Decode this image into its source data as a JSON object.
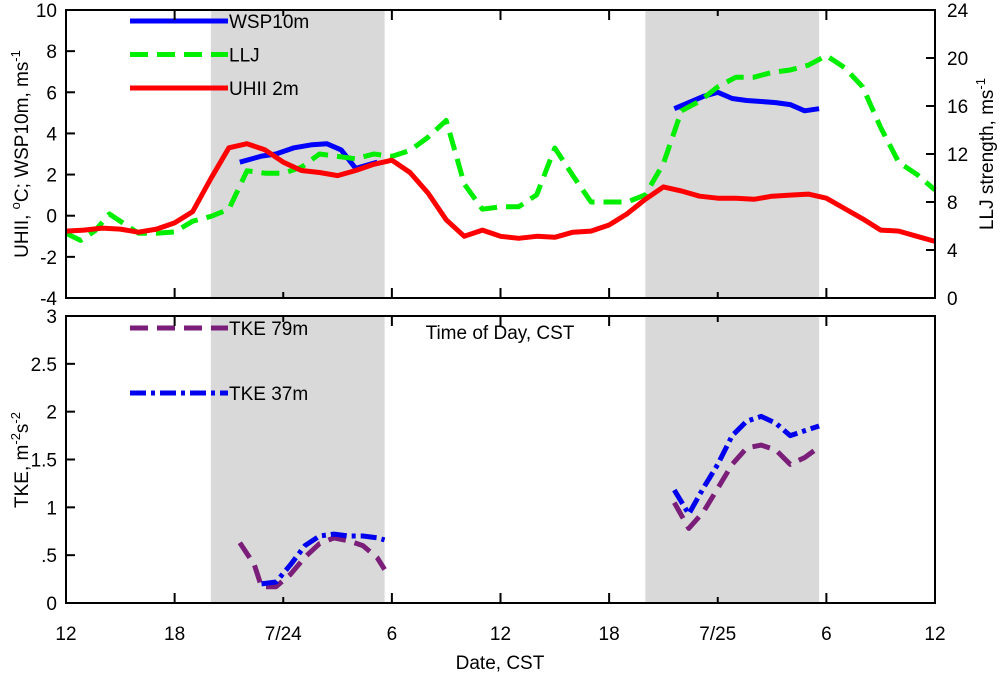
{
  "chart_data": [
    {
      "type": "line",
      "panel": "top",
      "ylabel": "UHII, °C; WSP10m, ms-1",
      "ylabel_parts": [
        "UHII, ",
        "o",
        "C; WSP10m, ms",
        "-1"
      ],
      "y2label": "LLJ strength, ms-1",
      "y2label_parts": [
        "LLJ strength, ms",
        "-1"
      ],
      "xlim": [
        0,
        48
      ],
      "ylim": [
        -4,
        10
      ],
      "y2lim": [
        0,
        24
      ],
      "yticks": [
        -4,
        -2,
        0,
        2,
        4,
        6,
        8,
        10
      ],
      "ytick_labels": [
        "-4",
        "-2",
        "0",
        "2",
        "4",
        "6",
        "8",
        "10"
      ],
      "y2ticks": [
        0,
        4,
        8,
        12,
        16,
        20,
        24
      ],
      "y2tick_labels": [
        "0",
        "4",
        "8",
        "12",
        "16",
        "20",
        "24"
      ],
      "shaded_ranges": [
        [
          8,
          17.6
        ],
        [
          32,
          41.6
        ]
      ],
      "series": [
        {
          "name": "WSP10m",
          "axis": "left",
          "color": "#0000ff",
          "style": "solid",
          "segments": [
            [
              [
                9.6,
                2.6
              ],
              [
                10.8,
                2.9
              ],
              [
                11.6,
                3.0
              ],
              [
                12.6,
                3.3
              ],
              [
                13.6,
                3.45
              ],
              [
                14.4,
                3.5
              ],
              [
                15.2,
                3.2
              ],
              [
                16.0,
                2.3
              ],
              [
                17.2,
                2.6
              ]
            ],
            [
              [
                33.6,
                5.2
              ],
              [
                34.4,
                5.5
              ],
              [
                35.2,
                5.8
              ],
              [
                36.0,
                6.0
              ],
              [
                36.8,
                5.7
              ],
              [
                37.6,
                5.6
              ],
              [
                38.4,
                5.55
              ],
              [
                39.2,
                5.5
              ],
              [
                40.0,
                5.4
              ],
              [
                40.8,
                5.1
              ],
              [
                41.6,
                5.2
              ]
            ]
          ]
        },
        {
          "name": "LLJ",
          "axis": "right",
          "color": "#00ee00",
          "style": "dash",
          "segments": [
            [
              [
                0.0,
                5.4
              ],
              [
                0.8,
                4.8
              ],
              [
                1.6,
                5.6
              ],
              [
                2.4,
                7.0
              ],
              [
                3.2,
                6.2
              ],
              [
                4.0,
                5.4
              ],
              [
                5.0,
                5.4
              ],
              [
                6.0,
                5.5
              ],
              [
                7.0,
                6.4
              ],
              [
                8.0,
                6.8
              ],
              [
                9.0,
                7.4
              ],
              [
                10.0,
                10.6
              ],
              [
                11.0,
                10.4
              ],
              [
                12.0,
                10.4
              ],
              [
                13.0,
                10.9
              ],
              [
                14.0,
                12.0
              ],
              [
                15.0,
                11.8
              ],
              [
                16.0,
                11.6
              ],
              [
                17.0,
                12.0
              ],
              [
                18.0,
                11.8
              ],
              [
                19.0,
                12.3
              ],
              [
                20.0,
                13.4
              ],
              [
                21.0,
                14.8
              ],
              [
                22.0,
                9.5
              ],
              [
                23.0,
                7.4
              ],
              [
                24.0,
                7.6
              ],
              [
                25.0,
                7.6
              ],
              [
                26.0,
                8.6
              ],
              [
                27.0,
                12.5
              ],
              [
                28.0,
                10.2
              ],
              [
                29.0,
                8.0
              ],
              [
                30.0,
                8.0
              ],
              [
                31.0,
                8.0
              ],
              [
                32.0,
                8.6
              ],
              [
                33.0,
                11.2
              ],
              [
                34.0,
                15.6
              ],
              [
                35.0,
                16.4
              ],
              [
                36.0,
                17.6
              ],
              [
                37.0,
                18.4
              ],
              [
                38.0,
                18.4
              ],
              [
                39.0,
                18.8
              ],
              [
                40.0,
                19.0
              ],
              [
                41.0,
                19.4
              ],
              [
                42.0,
                20.2
              ],
              [
                43.0,
                19.2
              ],
              [
                44.0,
                17.6
              ],
              [
                45.0,
                14.2
              ],
              [
                46.0,
                11.3
              ],
              [
                47.0,
                10.3
              ],
              [
                48.0,
                9.0
              ]
            ]
          ]
        },
        {
          "name": "UHII 2m",
          "axis": "left",
          "color": "#ff0000",
          "style": "solid",
          "segments": [
            [
              [
                0.0,
                -0.75
              ],
              [
                1.0,
                -0.7
              ],
              [
                2.0,
                -0.6
              ],
              [
                3.0,
                -0.65
              ],
              [
                4.0,
                -0.8
              ],
              [
                5.0,
                -0.65
              ],
              [
                6.0,
                -0.35
              ],
              [
                7.0,
                0.2
              ],
              [
                8.0,
                1.8
              ],
              [
                9.0,
                3.3
              ],
              [
                10.0,
                3.5
              ],
              [
                11.0,
                3.2
              ],
              [
                12.0,
                2.6
              ],
              [
                13.0,
                2.2
              ],
              [
                14.0,
                2.1
              ],
              [
                15.0,
                1.95
              ],
              [
                16.0,
                2.2
              ],
              [
                17.0,
                2.5
              ],
              [
                18.0,
                2.7
              ],
              [
                19.0,
                2.1
              ],
              [
                20.0,
                1.1
              ],
              [
                21.0,
                -0.2
              ],
              [
                22.0,
                -1.0
              ],
              [
                23.0,
                -0.7
              ],
              [
                24.0,
                -1.0
              ],
              [
                25.0,
                -1.1
              ],
              [
                26.0,
                -1.0
              ],
              [
                27.0,
                -1.05
              ],
              [
                28.0,
                -0.8
              ],
              [
                29.0,
                -0.75
              ],
              [
                30.0,
                -0.45
              ],
              [
                31.0,
                0.1
              ],
              [
                32.0,
                0.8
              ],
              [
                33.0,
                1.4
              ],
              [
                34.0,
                1.2
              ],
              [
                35.0,
                0.95
              ],
              [
                36.0,
                0.85
              ],
              [
                37.0,
                0.85
              ],
              [
                38.0,
                0.8
              ],
              [
                39.0,
                0.95
              ],
              [
                40.0,
                1.0
              ],
              [
                41.0,
                1.05
              ],
              [
                42.0,
                0.85
              ],
              [
                43.0,
                0.35
              ],
              [
                44.0,
                -0.15
              ],
              [
                45.0,
                -0.7
              ],
              [
                46.0,
                -0.75
              ],
              [
                47.0,
                -1.0
              ],
              [
                48.0,
                -1.25
              ]
            ]
          ]
        }
      ],
      "legend": {
        "placement": "top-left",
        "items": [
          {
            "label": "WSP10m",
            "color": "#0000ff",
            "style": "solid"
          },
          {
            "label": "LLJ",
            "color": "#00ee00",
            "style": "dash"
          },
          {
            "label": "UHII 2m",
            "color": "#ff0000",
            "style": "solid"
          }
        ]
      }
    },
    {
      "type": "line",
      "panel": "bottom",
      "title": "Time of Day, CST",
      "xlabel": "Date, CST",
      "ylabel": "TKE, m-2s-2",
      "ylabel_parts": [
        "TKE, m",
        "-2",
        "s",
        "-2"
      ],
      "xlim": [
        0,
        48
      ],
      "ylim": [
        0,
        3
      ],
      "yticks": [
        0,
        0.5,
        1,
        1.5,
        2,
        2.5,
        3
      ],
      "ytick_labels": [
        "0",
        ".5",
        "1",
        "1.5",
        "2",
        "2.5",
        "3"
      ],
      "xticks": [
        0,
        6,
        12,
        18,
        24,
        30,
        36,
        42,
        48
      ],
      "xtick_labels": [
        "12",
        "18",
        "7/24",
        "6",
        "12",
        "18",
        "7/25",
        "6",
        "12"
      ],
      "xtick_major_positions": [
        0,
        6,
        18,
        24,
        30,
        42,
        48
      ],
      "shaded_ranges": [
        [
          8,
          17.6
        ],
        [
          32,
          41.6
        ]
      ],
      "series": [
        {
          "name": "TKE 79m",
          "color": "#7a1e7a",
          "style": "dash",
          "segments": [
            [
              [
                9.6,
                0.63
              ],
              [
                10.4,
                0.4
              ],
              [
                10.8,
                0.17
              ],
              [
                11.6,
                0.17
              ],
              [
                12.4,
                0.3
              ],
              [
                13.2,
                0.48
              ],
              [
                14.0,
                0.62
              ],
              [
                14.8,
                0.68
              ],
              [
                15.6,
                0.65
              ],
              [
                16.4,
                0.6
              ],
              [
                17.2,
                0.47
              ],
              [
                17.6,
                0.35
              ]
            ],
            [
              [
                33.6,
                1.05
              ],
              [
                34.4,
                0.78
              ],
              [
                35.2,
                0.95
              ],
              [
                36.0,
                1.2
              ],
              [
                36.8,
                1.45
              ],
              [
                37.6,
                1.62
              ],
              [
                38.4,
                1.65
              ],
              [
                39.2,
                1.6
              ],
              [
                40.0,
                1.45
              ],
              [
                40.8,
                1.52
              ],
              [
                41.6,
                1.63
              ]
            ]
          ]
        },
        {
          "name": "TKE 37m",
          "color": "#0000ee",
          "style": "dashdot",
          "segments": [
            [
              [
                10.8,
                0.2
              ],
              [
                11.6,
                0.22
              ],
              [
                12.4,
                0.4
              ],
              [
                13.2,
                0.6
              ],
              [
                14.0,
                0.7
              ],
              [
                14.8,
                0.72
              ],
              [
                15.6,
                0.7
              ],
              [
                16.4,
                0.7
              ],
              [
                17.2,
                0.68
              ],
              [
                17.6,
                0.66
              ]
            ],
            [
              [
                33.6,
                1.18
              ],
              [
                34.4,
                0.93
              ],
              [
                35.2,
                1.2
              ],
              [
                36.0,
                1.45
              ],
              [
                36.8,
                1.75
              ],
              [
                37.6,
                1.9
              ],
              [
                38.4,
                1.95
              ],
              [
                39.2,
                1.88
              ],
              [
                40.0,
                1.75
              ],
              [
                40.8,
                1.8
              ],
              [
                41.6,
                1.85
              ]
            ]
          ]
        }
      ],
      "legend": {
        "placement": "top-left",
        "items": [
          {
            "label": "TKE 79m",
            "color": "#7a1e7a",
            "style": "dash"
          },
          {
            "label": "TKE 37m",
            "color": "#0000ee",
            "style": "dashdot"
          }
        ]
      }
    }
  ]
}
